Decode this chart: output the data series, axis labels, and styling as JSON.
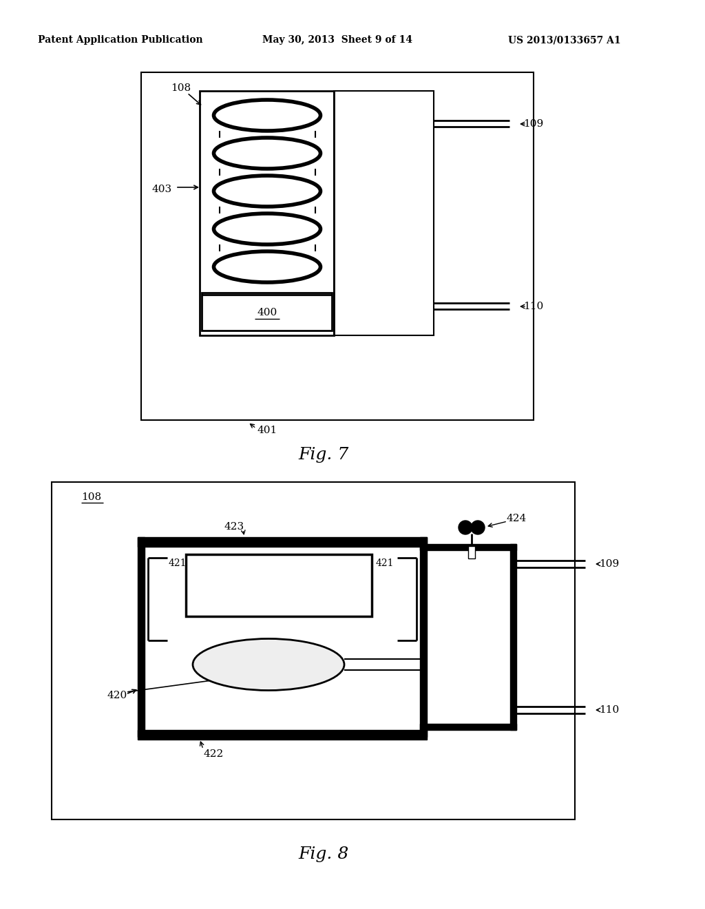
{
  "header_left": "Patent Application Publication",
  "header_mid": "May 30, 2013  Sheet 9 of 14",
  "header_right": "US 2013/0133657 A1",
  "fig7_label": "Fig. 7",
  "fig8_label": "Fig. 8",
  "bg_color": "#ffffff"
}
